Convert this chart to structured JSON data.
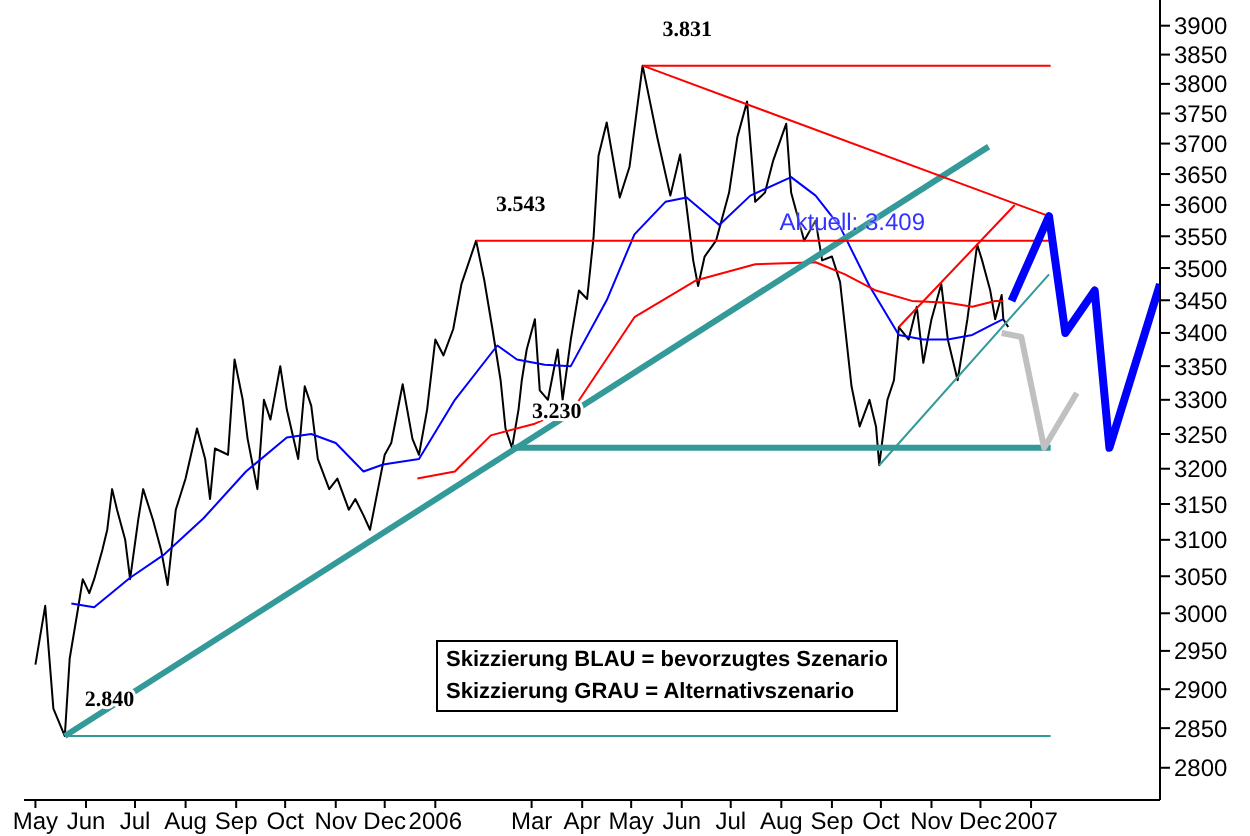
{
  "chart_data": {
    "type": "line",
    "log": "y",
    "marker": "none",
    "xlim": [
      "2005-04-24",
      "2007-03-21"
    ],
    "xticks": [
      {
        "value": "2005-05-01",
        "label": "May"
      },
      {
        "value": "2005-06-01",
        "label": "Jun"
      },
      {
        "value": "2005-07-01",
        "label": "Jul"
      },
      {
        "value": "2005-08-01",
        "label": "Aug"
      },
      {
        "value": "2005-09-01",
        "label": "Sep"
      },
      {
        "value": "2005-10-01",
        "label": "Oct"
      },
      {
        "value": "2005-11-01",
        "label": "Nov"
      },
      {
        "value": "2005-12-01",
        "label": "Dec"
      },
      {
        "value": "2006-01-01",
        "label": "2006"
      },
      {
        "value": "2006-03-01",
        "label": "Mar"
      },
      {
        "value": "2006-04-01",
        "label": "Apr"
      },
      {
        "value": "2006-05-01",
        "label": "May"
      },
      {
        "value": "2006-06-01",
        "label": "Jun"
      },
      {
        "value": "2006-07-01",
        "label": "Jul"
      },
      {
        "value": "2006-08-01",
        "label": "Aug"
      },
      {
        "value": "2006-09-01",
        "label": "Sep"
      },
      {
        "value": "2006-10-01",
        "label": "Oct"
      },
      {
        "value": "2006-11-01",
        "label": "Nov"
      },
      {
        "value": "2006-12-01",
        "label": "Dec"
      },
      {
        "value": "2007-01-01",
        "label": "2007"
      }
    ],
    "ylim": [
      2760,
      3945
    ],
    "yticks": [
      2800,
      2850,
      2900,
      2950,
      3000,
      3050,
      3100,
      3150,
      3200,
      3250,
      3300,
      3350,
      3400,
      3450,
      3500,
      3550,
      3600,
      3650,
      3700,
      3750,
      3800,
      3850,
      3900
    ],
    "series": [
      {
        "color": "#000000",
        "x": [
          "2005-05-01",
          "2005-05-07",
          "2005-05-12",
          "2005-05-19",
          "2005-05-22",
          "2005-05-27",
          "2005-05-30",
          "2005-06-03",
          "2005-06-06",
          "2005-06-11",
          "2005-06-14",
          "2005-06-17",
          "2005-06-20",
          "2005-06-25",
          "2005-06-28",
          "2005-07-03",
          "2005-07-06",
          "2005-07-12",
          "2005-07-17",
          "2005-07-21",
          "2005-07-26",
          "2005-08-01",
          "2005-08-08",
          "2005-08-13",
          "2005-08-16",
          "2005-08-19",
          "2005-08-27",
          "2005-08-31",
          "2005-09-05",
          "2005-09-08",
          "2005-09-14",
          "2005-09-18",
          "2005-09-22",
          "2005-09-28",
          "2005-10-02",
          "2005-10-09",
          "2005-10-13",
          "2005-10-17",
          "2005-10-21",
          "2005-10-28",
          "2005-11-02",
          "2005-11-09",
          "2005-11-13",
          "2005-11-18",
          "2005-11-22",
          "2005-12-01",
          "2005-12-05",
          "2005-12-12",
          "2005-12-18",
          "2005-12-22",
          "2005-12-27",
          "2006-01-01",
          "2006-01-06",
          "2006-01-12",
          "2006-01-17",
          "2006-01-26",
          "2006-01-31",
          "2006-02-05",
          "2006-02-10",
          "2006-02-13",
          "2006-02-17",
          "2006-02-21",
          "2006-02-23",
          "2006-02-26",
          "2006-03-03",
          "2006-03-06",
          "2006-03-11",
          "2006-03-17",
          "2006-03-20",
          "2006-03-25",
          "2006-03-30",
          "2006-04-04",
          "2006-04-08",
          "2006-04-11",
          "2006-04-16",
          "2006-04-24",
          "2006-04-30",
          "2006-05-08",
          "2006-05-17",
          "2006-05-25",
          "2006-05-31",
          "2006-06-08",
          "2006-06-11",
          "2006-06-15",
          "2006-06-22",
          "2006-06-30",
          "2006-07-05",
          "2006-07-11",
          "2006-07-16",
          "2006-07-22",
          "2006-07-27",
          "2006-08-04",
          "2006-08-07",
          "2006-08-15",
          "2006-08-22",
          "2006-08-26",
          "2006-09-01",
          "2006-09-06",
          "2006-09-13",
          "2006-09-18",
          "2006-09-24",
          "2006-09-28",
          "2006-09-30",
          "2006-10-05",
          "2006-10-09",
          "2006-10-12",
          "2006-10-18",
          "2006-10-23",
          "2006-10-27",
          "2006-11-01",
          "2006-11-07",
          "2006-11-11",
          "2006-11-17",
          "2006-11-23",
          "2006-11-29",
          "2006-12-02",
          "2006-12-07",
          "2006-12-10",
          "2006-12-14",
          "2006-12-15",
          "2006-12-18"
        ],
        "values": [
          2932,
          3010,
          2875,
          2840,
          2940,
          3005,
          3046,
          3027,
          3046,
          3086,
          3114,
          3171,
          3142,
          3100,
          3046,
          3128,
          3171,
          3128,
          3086,
          3038,
          3142,
          3186,
          3258,
          3214,
          3157,
          3229,
          3220,
          3360,
          3300,
          3243,
          3171,
          3300,
          3271,
          3350,
          3286,
          3214,
          3320,
          3291,
          3214,
          3171,
          3186,
          3142,
          3157,
          3134,
          3114,
          3220,
          3237,
          3323,
          3243,
          3220,
          3286,
          3390,
          3366,
          3406,
          3475,
          3543,
          3481,
          3406,
          3329,
          3258,
          3230,
          3286,
          3329,
          3375,
          3421,
          3314,
          3300,
          3375,
          3300,
          3390,
          3465,
          3452,
          3550,
          3680,
          3735,
          3612,
          3662,
          3831,
          3710,
          3615,
          3682,
          3512,
          3472,
          3518,
          3543,
          3620,
          3710,
          3770,
          3605,
          3620,
          3672,
          3733,
          3620,
          3543,
          3575,
          3512,
          3518,
          3478,
          3320,
          3261,
          3300,
          3261,
          3205,
          3300,
          3329,
          3409,
          3390,
          3440,
          3355,
          3421,
          3475,
          3390,
          3329,
          3421,
          3537,
          3512,
          3465,
          3421,
          3458,
          3421,
          3409
        ]
      },
      {
        "color": "#0000ff",
        "x": [
          "2005-05-23",
          "2005-06-06",
          "2005-06-28",
          "2005-07-19",
          "2005-08-12",
          "2005-09-07",
          "2005-10-02",
          "2005-10-17",
          "2005-11-01",
          "2005-11-18",
          "2005-11-30",
          "2005-12-22",
          "2006-01-13",
          "2006-02-08",
          "2006-02-20",
          "2006-03-09",
          "2006-03-25",
          "2006-04-16",
          "2006-05-03",
          "2006-05-22",
          "2006-06-04",
          "2006-06-24",
          "2006-07-13",
          "2006-08-07",
          "2006-08-22",
          "2006-09-06",
          "2006-09-24",
          "2006-10-12",
          "2006-10-27",
          "2006-11-11",
          "2006-11-26",
          "2006-12-10",
          "2006-12-15"
        ],
        "values": [
          3013,
          3008,
          3048,
          3080,
          3130,
          3196,
          3245,
          3250,
          3237,
          3196,
          3206,
          3214,
          3300,
          3381,
          3360,
          3352,
          3350,
          3450,
          3553,
          3605,
          3612,
          3568,
          3615,
          3645,
          3615,
          3565,
          3472,
          3397,
          3390,
          3390,
          3397,
          3415,
          3421
        ]
      },
      {
        "color": "#ff0000",
        "x": [
          "2005-12-21",
          "2006-01-13",
          "2006-02-04",
          "2006-03-03",
          "2006-03-28",
          "2006-05-03",
          "2006-06-10",
          "2006-07-16",
          "2006-08-22",
          "2006-09-09",
          "2006-09-28",
          "2006-10-20",
          "2006-11-11",
          "2006-11-26",
          "2006-12-10",
          "2006-12-15"
        ],
        "values": [
          3186,
          3196,
          3248,
          3265,
          3292,
          3424,
          3481,
          3506,
          3509,
          3490,
          3465,
          3449,
          3446,
          3440,
          3449,
          3449
        ]
      },
      {
        "color": "#339999",
        "x": [
          "2005-05-19",
          "2006-12-06"
        ],
        "values": [
          2840,
          3695
        ]
      },
      {
        "color": "#339999",
        "x": [
          "2005-05-19",
          "2007-01-13"
        ],
        "values": [
          2840,
          2840
        ]
      },
      {
        "color": "#339999",
        "x": [
          "2006-02-17",
          "2007-01-13"
        ],
        "values": [
          3230,
          3230
        ]
      },
      {
        "color": "#ff0000",
        "x": [
          "2006-05-08",
          "2007-01-13"
        ],
        "values": [
          3831,
          3831
        ]
      },
      {
        "color": "#ff0000",
        "x": [
          "2006-01-26",
          "2007-01-13"
        ],
        "values": [
          3543,
          3543
        ]
      },
      {
        "color": "#ff0000",
        "x": [
          "2006-05-08",
          "2007-01-12"
        ],
        "values": [
          3831,
          3582
        ]
      },
      {
        "color": "#ff0000",
        "x": [
          "2006-10-12",
          "2006-12-22"
        ],
        "values": [
          3409,
          3600
        ]
      },
      {
        "color": "#339999",
        "x": [
          "2006-09-30",
          "2007-01-12"
        ],
        "values": [
          3205,
          3490
        ]
      },
      {
        "color": "#c0c0c0",
        "x": [
          "2006-12-14",
          "2006-12-26",
          "2007-01-09",
          "2007-01-29"
        ],
        "values": [
          3400,
          3394,
          3230,
          3310
        ]
      },
      {
        "color": "#0000ff",
        "x": [
          "2006-12-20",
          "2007-01-12",
          "2007-01-22",
          "2007-02-09",
          "2007-02-18",
          "2007-03-21"
        ],
        "values": [
          3449,
          3582,
          3400,
          3465,
          3230,
          3475
        ]
      }
    ],
    "annotations": [
      {
        "text": "3.831",
        "x": "2006-05-08",
        "y": 3831
      },
      {
        "text": "3.543",
        "x": "2006-01-26",
        "y": 3543
      },
      {
        "text": "3.230",
        "x": "2006-02-17",
        "y": 3230
      },
      {
        "text": "2.840",
        "x": "2005-05-19",
        "y": 2840
      },
      "Aktuell: 3.409",
      "Skizzierung BLAU = bevorzugtes Szenario",
      "Skizzierung GRAU = Alternativszenario"
    ]
  }
}
